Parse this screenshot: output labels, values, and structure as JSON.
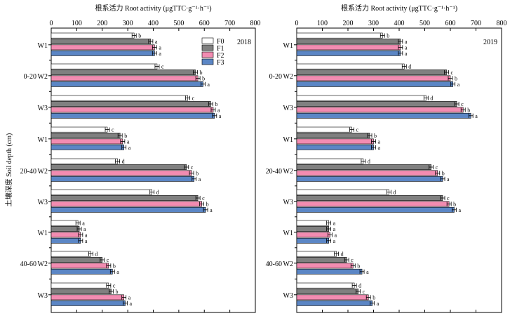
{
  "y_axis_label": "土壤深度 Soil depth (cm)",
  "legend": [
    {
      "name": "F0",
      "color": "#ffffff"
    },
    {
      "name": "F1",
      "color": "#808080"
    },
    {
      "name": "F2",
      "color": "#f28cb1"
    },
    {
      "name": "F3",
      "color": "#5b86c5"
    }
  ],
  "chart_data": [
    {
      "type": "bar",
      "orientation": "horizontal",
      "title": "2018",
      "xlabel": "根系活力 Root activity (μgTTC·g⁻¹·h⁻¹)",
      "xlim": [
        0,
        800
      ],
      "xticks": [
        0,
        100,
        200,
        300,
        400,
        500,
        600,
        700,
        800
      ],
      "depth_groups": [
        "0-20",
        "20-40",
        "40-60"
      ],
      "categories": [
        "W1",
        "W2",
        "W3",
        "W1",
        "W2",
        "W3",
        "W1",
        "W2",
        "W3"
      ],
      "series": [
        {
          "name": "F0",
          "values": [
            325,
            415,
            535,
            220,
            260,
            395,
            105,
            155,
            225
          ],
          "letters": [
            "b",
            "c",
            "c",
            "c",
            "d",
            "d",
            "a",
            "d",
            "c"
          ]
        },
        {
          "name": "F1",
          "values": [
            390,
            565,
            625,
            270,
            530,
            575,
            110,
            200,
            235
          ],
          "letters": [
            "a",
            "b",
            "b",
            "b",
            "c",
            "c",
            "a",
            "c",
            "b"
          ]
        },
        {
          "name": "F2",
          "values": [
            405,
            575,
            635,
            280,
            550,
            590,
            115,
            225,
            285
          ],
          "letters": [
            "a",
            "b",
            "a",
            "a",
            "b",
            "b",
            "a",
            "b",
            "a"
          ]
        },
        {
          "name": "F3",
          "values": [
            405,
            595,
            640,
            285,
            560,
            605,
            115,
            240,
            290
          ],
          "letters": [
            "a",
            "a",
            "a",
            "a",
            "a",
            "a",
            "a",
            "a",
            "a"
          ]
        }
      ]
    },
    {
      "type": "bar",
      "orientation": "horizontal",
      "title": "2019",
      "xlabel": "根系活力 Root activity (μgTTC·g⁻¹·h⁻¹)",
      "xlim": [
        0,
        800
      ],
      "xticks": [
        0,
        100,
        200,
        300,
        400,
        500,
        600,
        700,
        800
      ],
      "depth_groups": [
        "0-20",
        "20-40",
        "40-60"
      ],
      "categories": [
        "W1",
        "W2",
        "W3",
        "W1",
        "W2",
        "W3",
        "W1",
        "W2",
        "W3"
      ],
      "series": [
        {
          "name": "F0",
          "values": [
            335,
            420,
            505,
            215,
            260,
            360,
            125,
            155,
            225
          ],
          "letters": [
            "b",
            "d",
            "d",
            "c",
            "d",
            "d",
            "a",
            "d",
            "d"
          ]
        },
        {
          "name": "F1",
          "values": [
            405,
            585,
            625,
            285,
            525,
            570,
            125,
            195,
            240
          ],
          "letters": [
            "a",
            "c",
            "c",
            "b",
            "c",
            "c",
            "a",
            "c",
            "c"
          ]
        },
        {
          "name": "F2",
          "values": [
            405,
            600,
            650,
            300,
            550,
            595,
            130,
            220,
            280
          ],
          "letters": [
            "a",
            "b",
            "b",
            "a",
            "b",
            "b",
            "a",
            "b",
            "b"
          ]
        },
        {
          "name": "F3",
          "values": [
            405,
            610,
            680,
            300,
            570,
            615,
            125,
            255,
            295
          ],
          "letters": [
            "a",
            "a",
            "a",
            "a",
            "a",
            "a",
            "a",
            "a",
            "a"
          ]
        }
      ]
    }
  ]
}
